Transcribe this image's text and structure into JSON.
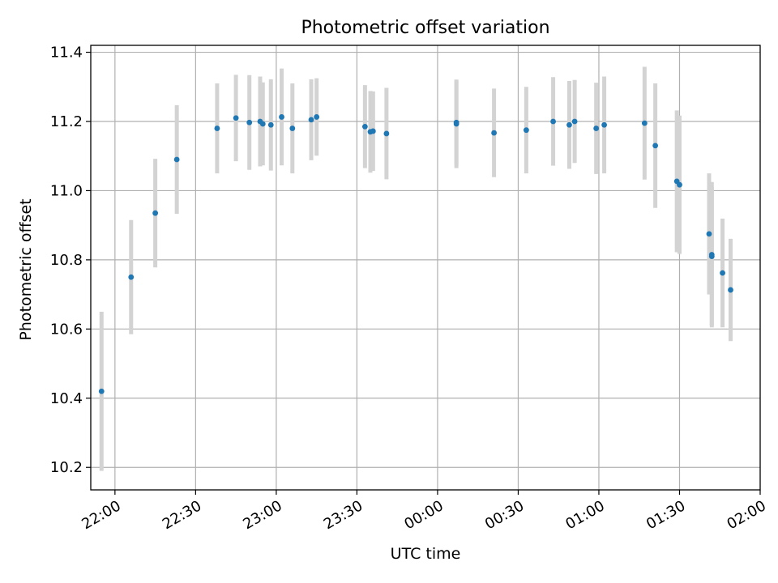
{
  "chart_data": {
    "type": "scatter",
    "title": "Photometric offset variation",
    "xlabel": "UTC time",
    "ylabel": "Photometric offset",
    "x_axis": "time",
    "xlim": [
      "21:51",
      "02:00"
    ],
    "ylim": [
      10.135,
      11.42
    ],
    "xticks": [
      "22:00",
      "22:30",
      "23:00",
      "23:30",
      "00:00",
      "00:30",
      "01:00",
      "01:30",
      "02:00"
    ],
    "yticks": [
      "10.2",
      "10.4",
      "10.6",
      "10.8",
      "11.0",
      "11.2",
      "11.4"
    ],
    "grid": true,
    "marker_color": "#1f77b4",
    "errorbar_color": "#d3d3d3",
    "series": [
      {
        "points": [
          {
            "t": "21:55",
            "y": 10.42,
            "err": 0.23
          },
          {
            "t": "22:06",
            "y": 10.75,
            "err": 0.165
          },
          {
            "t": "22:15",
            "y": 10.935,
            "err": 0.157
          },
          {
            "t": "22:23",
            "y": 11.09,
            "err": 0.157
          },
          {
            "t": "22:38",
            "y": 11.18,
            "err": 0.13
          },
          {
            "t": "22:45",
            "y": 11.21,
            "err": 0.125
          },
          {
            "t": "22:50",
            "y": 11.197,
            "err": 0.137
          },
          {
            "t": "22:54",
            "y": 11.2,
            "err": 0.13
          },
          {
            "t": "22:55",
            "y": 11.193,
            "err": 0.12
          },
          {
            "t": "22:58",
            "y": 11.19,
            "err": 0.132
          },
          {
            "t": "23:02",
            "y": 11.213,
            "err": 0.14
          },
          {
            "t": "23:06",
            "y": 11.18,
            "err": 0.13
          },
          {
            "t": "23:13",
            "y": 11.205,
            "err": 0.117
          },
          {
            "t": "23:15",
            "y": 11.213,
            "err": 0.112
          },
          {
            "t": "23:33",
            "y": 11.185,
            "err": 0.12
          },
          {
            "t": "23:35",
            "y": 11.17,
            "err": 0.118
          },
          {
            "t": "23:36",
            "y": 11.172,
            "err": 0.115
          },
          {
            "t": "23:41",
            "y": 11.165,
            "err": 0.132
          },
          {
            "t": "00:07",
            "y": 11.193,
            "err": 0.128
          },
          {
            "t": "00:07",
            "y": 11.197,
            "err": 0.122
          },
          {
            "t": "00:21",
            "y": 11.167,
            "err": 0.128
          },
          {
            "t": "00:33",
            "y": 11.175,
            "err": 0.125
          },
          {
            "t": "00:43",
            "y": 11.2,
            "err": 0.128
          },
          {
            "t": "00:49",
            "y": 11.19,
            "err": 0.127
          },
          {
            "t": "00:51",
            "y": 11.2,
            "err": 0.12
          },
          {
            "t": "00:59",
            "y": 11.18,
            "err": 0.132
          },
          {
            "t": "01:02",
            "y": 11.19,
            "err": 0.14
          },
          {
            "t": "01:17",
            "y": 11.195,
            "err": 0.163
          },
          {
            "t": "01:21",
            "y": 11.13,
            "err": 0.18
          },
          {
            "t": "01:29",
            "y": 11.027,
            "err": 0.205
          },
          {
            "t": "01:30",
            "y": 11.017,
            "err": 0.2
          },
          {
            "t": "01:41",
            "y": 10.875,
            "err": 0.175
          },
          {
            "t": "01:42",
            "y": 10.81,
            "err": 0.2
          },
          {
            "t": "01:42",
            "y": 10.815,
            "err": 0.21
          },
          {
            "t": "01:46",
            "y": 10.762,
            "err": 0.157
          },
          {
            "t": "01:49",
            "y": 10.713,
            "err": 0.148
          }
        ]
      }
    ]
  }
}
